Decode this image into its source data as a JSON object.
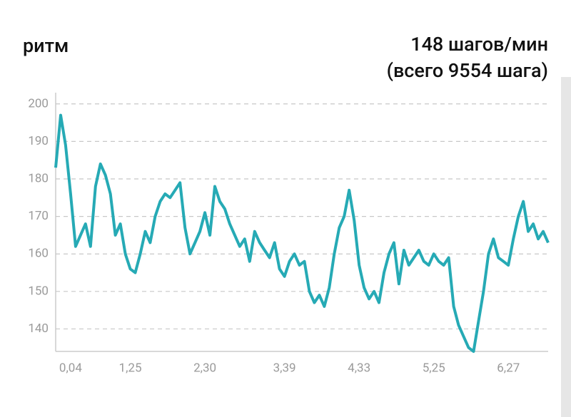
{
  "chart_data": {
    "type": "line",
    "title": "ритм",
    "summary": "148 шагов/мин",
    "total": "(всего 9554 шага)",
    "color": "#26aab5",
    "grid": true,
    "ylim": [
      134,
      203
    ],
    "yticks": [
      140,
      150,
      160,
      170,
      180,
      190,
      200
    ],
    "categories": [
      null,
      null,
      null,
      "0,04",
      null,
      null,
      null,
      null,
      null,
      null,
      null,
      null,
      null,
      null,
      null,
      "1,25",
      null,
      null,
      null,
      null,
      null,
      null,
      null,
      null,
      null,
      null,
      null,
      null,
      null,
      null,
      "2,30",
      null,
      null,
      null,
      null,
      null,
      null,
      null,
      null,
      null,
      null,
      null,
      null,
      null,
      null,
      null,
      "3,39",
      null,
      null,
      null,
      null,
      null,
      null,
      null,
      null,
      null,
      null,
      null,
      null,
      null,
      null,
      "4,33",
      null,
      null,
      null,
      null,
      null,
      null,
      null,
      null,
      null,
      null,
      null,
      null,
      null,
      null,
      "5,25",
      null,
      null,
      null,
      null,
      null,
      null,
      null,
      null,
      null,
      null,
      null,
      null,
      null,
      null,
      "6,27",
      null,
      null,
      null,
      null,
      null,
      null,
      null,
      null
    ],
    "values": [
      183,
      197,
      189,
      176,
      162,
      165,
      168,
      162,
      178,
      184,
      181,
      176,
      165,
      168,
      160,
      156,
      155,
      160,
      166,
      163,
      170,
      174,
      176,
      175,
      177,
      179,
      167,
      160,
      163,
      166,
      171,
      165,
      178,
      174,
      172,
      168,
      165,
      162,
      164,
      158,
      166,
      163,
      161,
      159,
      163,
      156,
      154,
      158,
      160,
      157,
      158,
      150,
      147,
      149,
      146,
      151,
      160,
      167,
      170,
      177,
      169,
      157,
      151,
      148,
      150,
      147,
      155,
      160,
      163,
      152,
      161,
      157,
      159,
      161,
      158,
      157,
      160,
      158,
      157,
      159,
      146,
      141,
      138,
      135,
      134,
      142,
      150,
      160,
      164,
      159,
      158,
      157,
      164,
      170,
      174,
      166,
      168,
      164,
      166,
      163
    ]
  }
}
